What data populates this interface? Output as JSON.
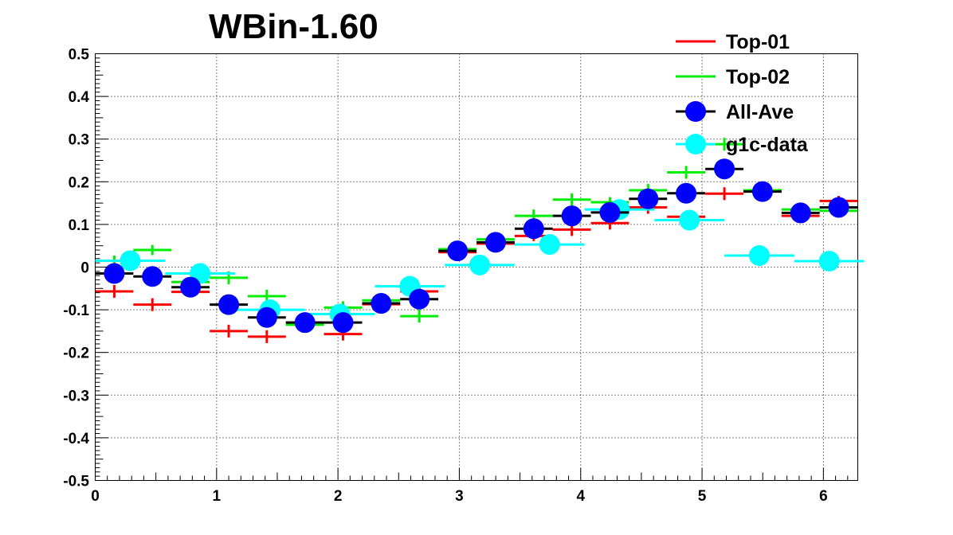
{
  "chart_data": {
    "type": "scatter",
    "title": "WBin-1.60",
    "xlabel": "",
    "ylabel": "",
    "xlim": [
      0,
      6.2832
    ],
    "ylim": [
      -0.5,
      0.5
    ],
    "x_ticks": [
      "0",
      "1",
      "2",
      "3",
      "4",
      "5",
      "6"
    ],
    "x_tick_values": [
      0,
      1,
      2,
      3,
      4,
      5,
      6
    ],
    "y_ticks": [
      "-0.5",
      "-0.4",
      "-0.3",
      "-0.2",
      "-0.1",
      "0",
      "0.1",
      "0.2",
      "0.3",
      "0.4",
      "0.5"
    ],
    "y_tick_values": [
      -0.5,
      -0.4,
      -0.3,
      -0.2,
      -0.1,
      0,
      0.1,
      0.2,
      0.3,
      0.4,
      0.5
    ],
    "grid": true,
    "legend_position": "top-right",
    "bin_width": 0.3142,
    "series": [
      {
        "name": "Top-01",
        "color": "#ff0000",
        "marker": "cross",
        "x": [
          0.157,
          0.471,
          0.785,
          1.1,
          1.414,
          1.728,
          2.042,
          2.356,
          2.67,
          2.985,
          3.299,
          3.613,
          3.927,
          4.241,
          4.555,
          4.869,
          5.184,
          5.498,
          5.812,
          6.126
        ],
        "y": [
          -0.057,
          -0.088,
          -0.058,
          -0.15,
          -0.163,
          -0.13,
          -0.157,
          -0.087,
          -0.057,
          0.035,
          0.055,
          0.073,
          0.088,
          0.103,
          0.14,
          0.118,
          0.172,
          0.178,
          0.12,
          0.155
        ],
        "yerr": [
          0.015,
          0.015,
          0.012,
          0.015,
          0.015,
          0.012,
          0.015,
          0.012,
          0.012,
          0.012,
          0.012,
          0.012,
          0.015,
          0.015,
          0.015,
          0.01,
          0.015,
          0.01,
          0.01,
          0.012
        ]
      },
      {
        "name": "Top-02",
        "color": "#00ee00",
        "marker": "cross",
        "x": [
          0.157,
          0.471,
          0.785,
          1.1,
          1.414,
          1.728,
          2.042,
          2.356,
          2.67,
          2.985,
          3.299,
          3.613,
          3.927,
          4.241,
          4.555,
          4.869,
          5.184,
          5.498,
          5.812,
          6.126
        ],
        "y": [
          0.015,
          0.04,
          -0.035,
          -0.025,
          -0.068,
          -0.135,
          -0.095,
          -0.078,
          -0.115,
          0.042,
          0.065,
          0.12,
          0.158,
          0.152,
          0.18,
          0.222,
          0.288,
          0.18,
          0.135,
          0.132
        ],
        "yerr": [
          0.012,
          0.012,
          0.012,
          0.015,
          0.015,
          0.012,
          0.015,
          0.012,
          0.015,
          0.012,
          0.012,
          0.015,
          0.015,
          0.012,
          0.015,
          0.015,
          0.015,
          0.01,
          0.01,
          0.012
        ]
      },
      {
        "name": "All-Ave",
        "color": "#0000ff",
        "marker": "circle",
        "x": [
          0.157,
          0.471,
          0.785,
          1.1,
          1.414,
          1.728,
          2.042,
          2.356,
          2.67,
          2.985,
          3.299,
          3.613,
          3.927,
          4.241,
          4.555,
          4.869,
          5.184,
          5.498,
          5.812,
          6.126
        ],
        "y": [
          -0.015,
          -0.022,
          -0.047,
          -0.088,
          -0.118,
          -0.13,
          -0.13,
          -0.085,
          -0.075,
          0.038,
          0.058,
          0.09,
          0.12,
          0.128,
          0.16,
          0.173,
          0.23,
          0.177,
          0.127,
          0.14
        ]
      },
      {
        "name": "g1c-data",
        "color": "#00ffff",
        "marker": "circle",
        "x": [
          0.288,
          0.864,
          1.44,
          2.016,
          2.592,
          3.168,
          3.744,
          4.32,
          4.896,
          5.472,
          6.048
        ],
        "y": [
          0.015,
          -0.015,
          -0.1,
          -0.11,
          -0.045,
          0.005,
          0.053,
          0.135,
          0.11,
          0.027,
          0.014
        ],
        "x_halfwidth": 0.288
      }
    ]
  }
}
